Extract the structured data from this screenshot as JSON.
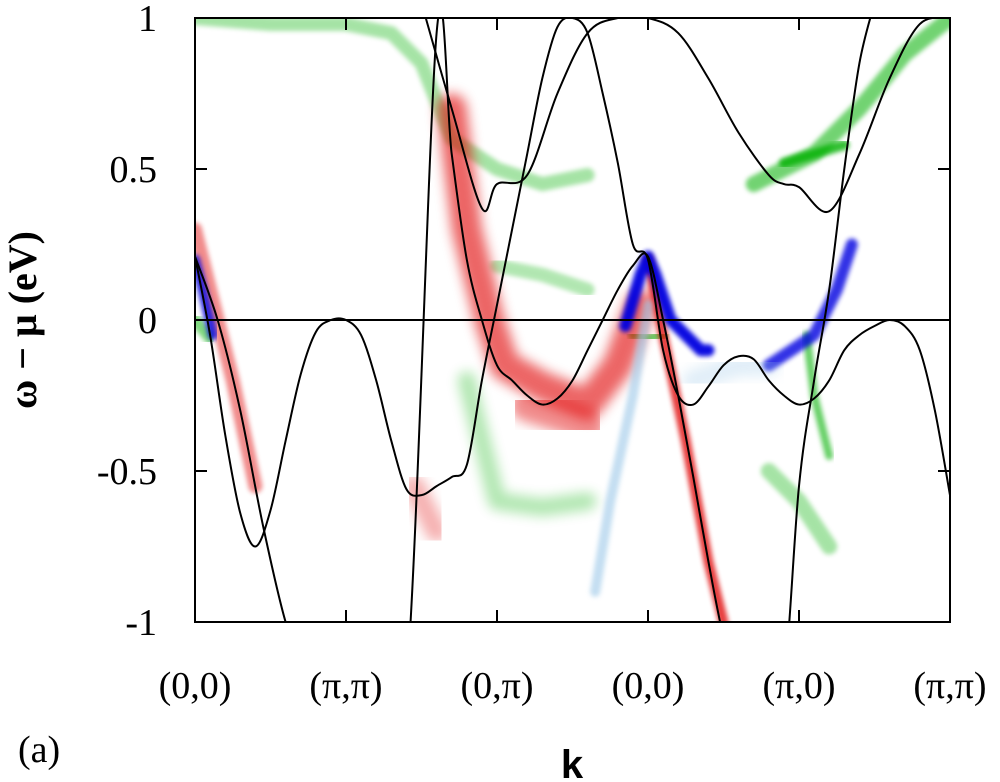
{
  "chart_data": {
    "type": "line",
    "panel_label": "(a)",
    "xlabel": "k",
    "ylabel": "ω − μ (eV)",
    "ylim": [
      -1,
      1
    ],
    "xlim": [
      0,
      5
    ],
    "x_ticks": [
      {
        "value": 0,
        "label": "(0,0)"
      },
      {
        "value": 1,
        "label": "(π,π)"
      },
      {
        "value": 2,
        "label": "(0,π)"
      },
      {
        "value": 3,
        "label": "(0,0)"
      },
      {
        "value": 4,
        "label": "(π,0)"
      },
      {
        "value": 5,
        "label": "(π,π)"
      }
    ],
    "y_ticks": [
      {
        "value": 1,
        "label": "1"
      },
      {
        "value": 0.5,
        "label": "0.5"
      },
      {
        "value": 0,
        "label": "0"
      },
      {
        "value": -0.5,
        "label": "-0.5"
      },
      {
        "value": -1,
        "label": "-1"
      }
    ],
    "fermi_level": 0,
    "grid": false,
    "colors": {
      "bands": "#000000",
      "weight_red": "#e00000",
      "weight_green": "#00b000",
      "weight_blue": "#0000e0",
      "weight_lightblue": "#9cc8e8"
    },
    "series": [
      {
        "x": [
          0,
          0.1,
          0.2,
          0.3,
          0.4,
          0.5,
          0.6,
          0.7,
          0.8,
          0.9,
          1.0,
          1.1,
          1.2,
          1.3,
          1.4,
          1.5,
          1.6,
          1.7,
          1.8,
          1.9,
          2.0,
          2.1,
          2.2,
          2.3,
          2.4,
          2.5,
          2.6,
          2.7,
          2.8,
          2.9,
          3.0,
          3.1,
          3.2,
          3.3,
          3.4,
          3.5,
          3.6,
          3.7,
          3.8,
          3.9,
          4.0,
          4.1,
          4.2,
          4.3,
          4.4,
          4.5,
          4.6,
          4.7,
          4.8,
          4.9,
          5.0
        ],
        "y": [
          0.21,
          -0.05,
          -0.38,
          -0.64,
          -0.75,
          -0.63,
          -0.4,
          -0.18,
          -0.04,
          0.0,
          0.0,
          -0.05,
          -0.2,
          -0.4,
          -0.56,
          -0.58,
          -0.55,
          -0.52,
          -0.48,
          -0.2,
          0.05,
          0.3,
          0.55,
          0.8,
          0.97,
          1.0,
          0.95,
          0.75,
          0.52,
          0.25,
          0.2,
          -0.1,
          -0.25,
          -0.28,
          -0.22,
          -0.15,
          -0.12,
          -0.13,
          -0.2,
          -0.25,
          -0.28,
          -0.26,
          -0.2,
          -0.1,
          -0.05,
          -0.02,
          0.0,
          -0.02,
          -0.1,
          -0.3,
          -0.58
        ]
      },
      {
        "x": [
          0,
          0.15,
          0.3,
          0.45,
          0.6,
          0.75,
          0.9,
          1.0,
          1.2,
          1.4,
          1.6,
          1.7,
          1.8,
          1.9,
          2.0,
          2.1,
          2.2,
          2.3,
          2.4,
          2.5,
          2.6,
          2.7,
          2.8,
          2.9,
          3.0,
          3.1,
          3.2,
          3.3,
          3.4,
          3.5,
          3.6,
          3.7,
          3.8,
          3.9,
          4.0,
          4.1,
          4.2,
          4.3,
          4.4,
          4.5
        ],
        "y": [
          0.21,
          0.0,
          -0.3,
          -0.68,
          -1.0,
          -1.2,
          -1.2,
          -1.2,
          -1.2,
          -1.2,
          0.95,
          0.55,
          0.2,
          0.0,
          -0.15,
          -0.2,
          -0.25,
          -0.28,
          -0.26,
          -0.2,
          -0.1,
          0.0,
          0.1,
          0.18,
          0.21,
          0.0,
          -0.25,
          -0.52,
          -0.8,
          -1.05,
          -1.2,
          -1.2,
          -1.2,
          -1.2,
          -0.55,
          -0.2,
          0.1,
          0.5,
          0.85,
          1.05
        ]
      },
      {
        "x": [
          1.5,
          1.7,
          1.9,
          2.0,
          2.2,
          2.4,
          2.6,
          2.8,
          3.0,
          3.2,
          3.4,
          3.6,
          3.8,
          3.9,
          4.0,
          4.2,
          4.4,
          4.6,
          4.8,
          5.0
        ],
        "y": [
          1.05,
          0.7,
          0.37,
          0.45,
          0.48,
          0.75,
          0.95,
          1.0,
          1.0,
          0.95,
          0.8,
          0.62,
          0.48,
          0.45,
          0.44,
          0.36,
          0.55,
          0.8,
          0.98,
          1.0
        ]
      }
    ]
  },
  "spectral_weight": [
    {
      "color": "green",
      "description_for_render": "band",
      "pts": [
        [
          0.0,
          1.0
        ],
        [
          0.5,
          0.98
        ],
        [
          1.0,
          0.98
        ],
        [
          1.3,
          0.95
        ],
        [
          1.5,
          0.85
        ],
        [
          1.7,
          0.6
        ],
        [
          2.0,
          0.5
        ],
        [
          2.3,
          0.45
        ],
        [
          2.6,
          0.48
        ]
      ],
      "width": 14,
      "opacity": 0.35
    },
    {
      "color": "green",
      "pts": [
        [
          2.0,
          0.18
        ],
        [
          2.3,
          0.15
        ],
        [
          2.6,
          0.1
        ]
      ],
      "width": 14,
      "opacity": 0.3
    },
    {
      "color": "green",
      "pts": [
        [
          3.7,
          0.45
        ],
        [
          3.9,
          0.5
        ],
        [
          4.1,
          0.55
        ],
        [
          4.4,
          0.7
        ],
        [
          4.7,
          0.88
        ],
        [
          5.0,
          1.0
        ]
      ],
      "width": 16,
      "opacity": 0.55
    },
    {
      "color": "green",
      "pts": [
        [
          3.9,
          0.52
        ],
        [
          4.1,
          0.55
        ],
        [
          4.3,
          0.58
        ]
      ],
      "width": 10,
      "opacity": 0.8
    },
    {
      "color": "green",
      "pts": [
        [
          1.8,
          -0.2
        ],
        [
          1.9,
          -0.4
        ],
        [
          2.0,
          -0.6
        ],
        [
          2.3,
          -0.62
        ],
        [
          2.6,
          -0.6
        ]
      ],
      "width": 18,
      "opacity": 0.3
    },
    {
      "color": "green",
      "pts": [
        [
          3.8,
          -0.5
        ],
        [
          4.0,
          -0.6
        ],
        [
          4.2,
          -0.75
        ]
      ],
      "width": 16,
      "opacity": 0.35
    },
    {
      "color": "green",
      "pts": [
        [
          4.05,
          -0.05
        ],
        [
          4.1,
          -0.25
        ],
        [
          4.2,
          -0.45
        ]
      ],
      "width": 8,
      "opacity": 0.6
    },
    {
      "color": "green",
      "pts": [
        [
          2.9,
          -0.05
        ],
        [
          3.0,
          -0.06
        ],
        [
          3.1,
          -0.05
        ]
      ],
      "width": 10,
      "opacity": 0.6
    },
    {
      "color": "green",
      "pts": [
        [
          0.0,
          0.0
        ],
        [
          0.05,
          -0.03
        ],
        [
          0.1,
          -0.06
        ]
      ],
      "width": 12,
      "opacity": 0.5
    },
    {
      "color": "red",
      "pts": [
        [
          0.0,
          0.3
        ],
        [
          0.1,
          0.1
        ],
        [
          0.25,
          -0.2
        ],
        [
          0.4,
          -0.55
        ]
      ],
      "width": 14,
      "opacity": 0.45
    },
    {
      "color": "red",
      "pts": [
        [
          1.7,
          0.7
        ],
        [
          1.8,
          0.3
        ],
        [
          1.95,
          0.0
        ],
        [
          2.05,
          -0.15
        ],
        [
          2.3,
          -0.22
        ],
        [
          2.6,
          -0.28
        ],
        [
          2.8,
          -0.15
        ],
        [
          2.95,
          0.05
        ]
      ],
      "width": 30,
      "opacity": 0.6
    },
    {
      "color": "red",
      "pts": [
        [
          2.2,
          -0.28
        ],
        [
          2.45,
          -0.32
        ],
        [
          2.6,
          -0.35
        ]
      ],
      "width": 34,
      "opacity": 0.45
    },
    {
      "color": "red",
      "pts": [
        [
          3.0,
          0.2
        ],
        [
          3.1,
          -0.05
        ],
        [
          3.25,
          -0.4
        ],
        [
          3.4,
          -0.8
        ],
        [
          3.5,
          -1.0
        ]
      ],
      "width": 10,
      "opacity": 0.75
    },
    {
      "color": "red",
      "pts": [
        [
          1.45,
          -0.55
        ],
        [
          1.6,
          -0.7
        ]
      ],
      "width": 22,
      "opacity": 0.3
    },
    {
      "color": "blue",
      "pts": [
        [
          2.85,
          -0.02
        ],
        [
          2.95,
          0.15
        ],
        [
          3.0,
          0.21
        ],
        [
          3.05,
          0.15
        ],
        [
          3.15,
          0.0
        ],
        [
          3.35,
          -0.1
        ],
        [
          3.4,
          -0.1
        ]
      ],
      "width": 12,
      "opacity": 0.95
    },
    {
      "color": "blue",
      "pts": [
        [
          3.8,
          -0.15
        ],
        [
          3.95,
          -0.1
        ],
        [
          4.1,
          -0.05
        ],
        [
          4.25,
          0.1
        ],
        [
          4.35,
          0.25
        ]
      ],
      "width": 12,
      "opacity": 0.8
    },
    {
      "color": "blue",
      "pts": [
        [
          0.0,
          0.2
        ],
        [
          0.05,
          0.1
        ],
        [
          0.12,
          -0.05
        ]
      ],
      "width": 10,
      "opacity": 0.8
    },
    {
      "color": "lightblue",
      "pts": [
        [
          2.65,
          -0.9
        ],
        [
          2.75,
          -0.6
        ],
        [
          2.9,
          -0.25
        ],
        [
          3.0,
          0.05
        ]
      ],
      "width": 10,
      "opacity": 0.6
    },
    {
      "color": "lightblue",
      "pts": [
        [
          3.3,
          -0.2
        ],
        [
          3.6,
          -0.15
        ],
        [
          3.8,
          -0.15
        ]
      ],
      "width": 22,
      "opacity": 0.3
    }
  ]
}
